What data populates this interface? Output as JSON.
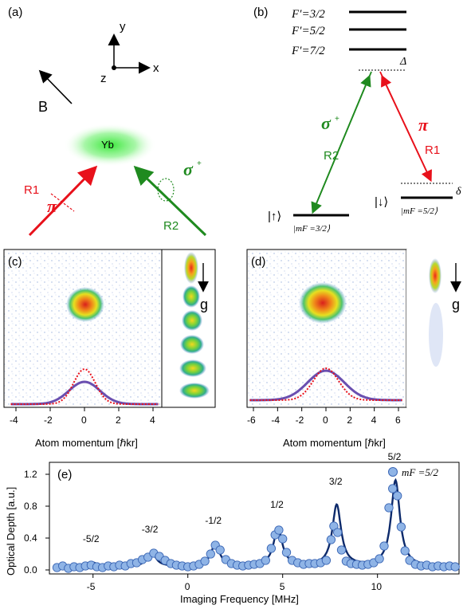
{
  "panels": {
    "a": "(a)",
    "b": "(b)",
    "c": "(c)",
    "d": "(d)",
    "e": "(e)"
  },
  "panel_a": {
    "axis_y": "y",
    "axis_x": "x",
    "axis_z": "z",
    "field": "B",
    "atom": "Yb",
    "beam1": "R1",
    "beam1_pol": "π",
    "beam2": "R2",
    "beam2_pol": "σ",
    "beam2_pol_sup": "+"
  },
  "panel_b": {
    "levels": [
      "F′=3/2",
      "F′=5/2",
      "F′=7/2"
    ],
    "detuning": "Δ",
    "detuning_small": "δ",
    "sigma": "σ",
    "sigma_sup": "+",
    "pi": "π",
    "r2": "R2",
    "r1": "R1",
    "state_up": "|↑⟩",
    "state_up_mf": "|mF =3/2⟩",
    "state_down": "|↓⟩",
    "state_down_mf": "|mF =5/2⟩"
  },
  "panel_c": {
    "xlabel": "Atom momentum [ℏkr]",
    "ticks": [
      "-4",
      "-2",
      "0",
      "2",
      "4"
    ],
    "gravity": "g"
  },
  "panel_d": {
    "xlabel": "Atom momentum [ℏkr]",
    "ticks": [
      "-6",
      "-4",
      "-2",
      "0",
      "2",
      "4",
      "6"
    ],
    "gravity": "g"
  },
  "chart_data": {
    "type": "scatter",
    "ylabel": "Optical Depth [a.u.]",
    "xlabel": "Imaging Frequency [MHz]",
    "xlim": [
      -7.3,
      14.3
    ],
    "ylim": [
      -0.05,
      1.35
    ],
    "xticks": [
      -5,
      0,
      5,
      10
    ],
    "yticks": [
      0.0,
      0.4,
      0.8,
      1.2
    ],
    "legend": "mF =5/2",
    "legend_position": "top-right",
    "colors": {
      "points": "#8fb4e6",
      "point_edge": "#3a66b5",
      "fit": "#0d2a6b"
    },
    "peaks": [
      {
        "label": "-5/2",
        "center": -5.0,
        "height": 0.05
      },
      {
        "label": "-3/2",
        "center": -1.9,
        "height": 0.17
      },
      {
        "label": "-1/2",
        "center": 1.45,
        "height": 0.28
      },
      {
        "label": "1/2",
        "center": 4.75,
        "height": 0.48
      },
      {
        "label": "3/2",
        "center": 7.85,
        "height": 0.77
      },
      {
        "label": "5/2",
        "center": 10.95,
        "height": 1.08
      }
    ],
    "points": [
      [
        -6.9,
        0.03
      ],
      [
        -6.6,
        0.05
      ],
      [
        -6.3,
        0.02
      ],
      [
        -6.0,
        0.04
      ],
      [
        -5.7,
        0.03
      ],
      [
        -5.4,
        0.05
      ],
      [
        -5.1,
        0.06
      ],
      [
        -4.8,
        0.04
      ],
      [
        -4.5,
        0.03
      ],
      [
        -4.2,
        0.05
      ],
      [
        -3.9,
        0.04
      ],
      [
        -3.6,
        0.06
      ],
      [
        -3.3,
        0.05
      ],
      [
        -3.0,
        0.08
      ],
      [
        -2.7,
        0.09
      ],
      [
        -2.4,
        0.13
      ],
      [
        -2.1,
        0.16
      ],
      [
        -1.8,
        0.21
      ],
      [
        -1.5,
        0.17
      ],
      [
        -1.2,
        0.12
      ],
      [
        -0.9,
        0.08
      ],
      [
        -0.6,
        0.06
      ],
      [
        -0.3,
        0.05
      ],
      [
        0.0,
        0.04
      ],
      [
        0.3,
        0.05
      ],
      [
        0.6,
        0.07
      ],
      [
        0.9,
        0.11
      ],
      [
        1.2,
        0.2
      ],
      [
        1.45,
        0.31
      ],
      [
        1.7,
        0.25
      ],
      [
        2.0,
        0.13
      ],
      [
        2.3,
        0.08
      ],
      [
        2.6,
        0.06
      ],
      [
        2.9,
        0.05
      ],
      [
        3.2,
        0.06
      ],
      [
        3.5,
        0.07
      ],
      [
        3.8,
        0.08
      ],
      [
        4.1,
        0.12
      ],
      [
        4.4,
        0.27
      ],
      [
        4.6,
        0.44
      ],
      [
        4.8,
        0.5
      ],
      [
        5.0,
        0.39
      ],
      [
        5.2,
        0.22
      ],
      [
        5.5,
        0.12
      ],
      [
        5.8,
        0.09
      ],
      [
        6.1,
        0.07
      ],
      [
        6.4,
        0.08
      ],
      [
        6.7,
        0.08
      ],
      [
        7.0,
        0.09
      ],
      [
        7.3,
        0.12
      ],
      [
        7.55,
        0.38
      ],
      [
        7.7,
        0.55
      ],
      [
        7.9,
        0.47
      ],
      [
        8.1,
        0.25
      ],
      [
        8.35,
        0.11
      ],
      [
        8.6,
        0.08
      ],
      [
        8.9,
        0.07
      ],
      [
        9.2,
        0.06
      ],
      [
        9.5,
        0.07
      ],
      [
        9.8,
        0.09
      ],
      [
        10.1,
        0.14
      ],
      [
        10.35,
        0.3
      ],
      [
        10.6,
        0.78
      ],
      [
        10.8,
        1.02
      ],
      [
        11.05,
        0.93
      ],
      [
        11.25,
        0.54
      ],
      [
        11.45,
        0.24
      ],
      [
        11.7,
        0.12
      ],
      [
        12.0,
        0.07
      ],
      [
        12.3,
        0.05
      ],
      [
        12.6,
        0.06
      ],
      [
        12.9,
        0.04
      ],
      [
        13.2,
        0.05
      ],
      [
        13.5,
        0.04
      ],
      [
        13.8,
        0.05
      ],
      [
        14.1,
        0.04
      ]
    ]
  }
}
